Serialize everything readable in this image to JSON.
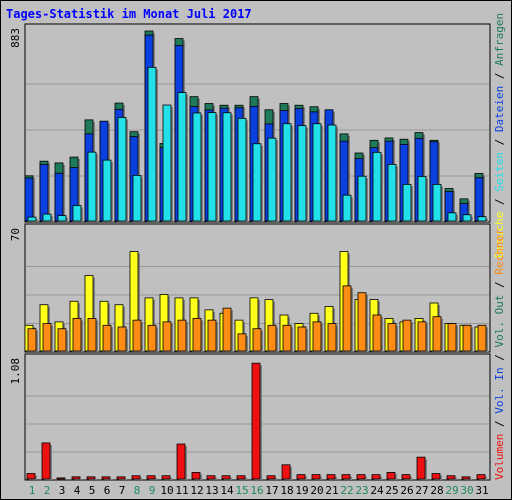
{
  "title": "Tages-Statistik im Monat Juli 2017",
  "colors": {
    "background": "#c0c0c0",
    "title": "#0000ff",
    "anfragen": "#1f7a5a",
    "dateien": "#0a3fe0",
    "seiten": "#22e0e8",
    "besuche": "#ffff19",
    "rechner": "#ff8c14",
    "volumen": "#ee1111",
    "weekday_label": "#000000",
    "weekend_label": "#1f8a5a"
  },
  "legend_right_top": [
    "Anfragen",
    "Dateien",
    "Seiten",
    "Besuche"
  ],
  "legend_right_mid": [
    "Rechner",
    "Vol. Out",
    "Vol. In",
    "Volumen"
  ],
  "chart_data": [
    {
      "type": "bar",
      "title": "Tages-Statistik im Monat Juli 2017",
      "categories": [
        "1",
        "2",
        "3",
        "4",
        "5",
        "6",
        "7",
        "8",
        "9",
        "10",
        "11",
        "12",
        "13",
        "14",
        "15",
        "16",
        "17",
        "18",
        "19",
        "20",
        "21",
        "22",
        "23",
        "24",
        "25",
        "26",
        "27",
        "28",
        "29",
        "30",
        "31"
      ],
      "weekend_days": [
        "1",
        "2",
        "8",
        "9",
        "15",
        "16",
        "22",
        "23",
        "29",
        "30"
      ],
      "ymax_label": "883",
      "ylim": [
        0,
        883
      ],
      "grid": true,
      "series": [
        {
          "name": "Anfragen",
          "values": [
            210,
            278,
            270,
            297,
            470,
            455,
            548,
            415,
            883,
            360,
            848,
            578,
            546,
            538,
            538,
            578,
            517,
            546,
            538,
            531,
            487,
            405,
            316,
            375,
            386,
            380,
            411,
            375,
            151,
            103,
            221
          ]
        },
        {
          "name": "Dateien",
          "values": [
            200,
            263,
            222,
            248,
            405,
            464,
            519,
            392,
            864,
            341,
            816,
            532,
            516,
            524,
            526,
            533,
            451,
            514,
            523,
            507,
            517,
            371,
            290,
            341,
            371,
            356,
            384,
            368,
            137,
            81,
            201
          ]
        },
        {
          "name": "Seiten",
          "values": [
            18,
            32,
            25,
            72,
            320,
            283,
            481,
            212,
            714,
            539,
            597,
            502,
            504,
            503,
            477,
            359,
            385,
            452,
            443,
            452,
            446,
            120,
            208,
            319,
            263,
            170,
            207,
            170,
            38,
            29,
            20
          ]
        }
      ]
    },
    {
      "type": "bar",
      "ymax_label": "70",
      "ylim": [
        0,
        70
      ],
      "grid": true,
      "series": [
        {
          "name": "Besuche",
          "values": [
            15,
            27,
            17,
            29,
            44,
            29,
            27,
            58,
            31,
            33,
            31,
            31,
            24,
            22,
            18,
            31,
            30,
            21,
            16,
            22,
            26,
            58,
            30,
            30,
            19,
            17,
            19,
            28,
            16,
            15,
            14
          ]
        },
        {
          "name": "Rechner",
          "values": [
            13,
            16,
            13,
            19,
            19,
            15,
            14,
            18,
            15,
            17,
            18,
            19,
            18,
            25,
            10,
            13,
            15,
            15,
            14,
            17,
            16,
            38,
            34,
            21,
            16,
            18,
            17,
            20,
            16,
            15,
            15
          ]
        }
      ]
    },
    {
      "type": "bar",
      "ymax_label": "1.08",
      "ylim": [
        0,
        1.08
      ],
      "grid": true,
      "series": [
        {
          "name": "Volumen",
          "values": [
            0.05,
            0.33,
            0.01,
            0.02,
            0.02,
            0.02,
            0.02,
            0.03,
            0.03,
            0.03,
            0.32,
            0.06,
            0.03,
            0.03,
            0.03,
            1.06,
            0.03,
            0.13,
            0.04,
            0.04,
            0.04,
            0.04,
            0.04,
            0.04,
            0.06,
            0.04,
            0.2,
            0.05,
            0.03,
            0.02,
            0.04
          ]
        }
      ]
    }
  ]
}
